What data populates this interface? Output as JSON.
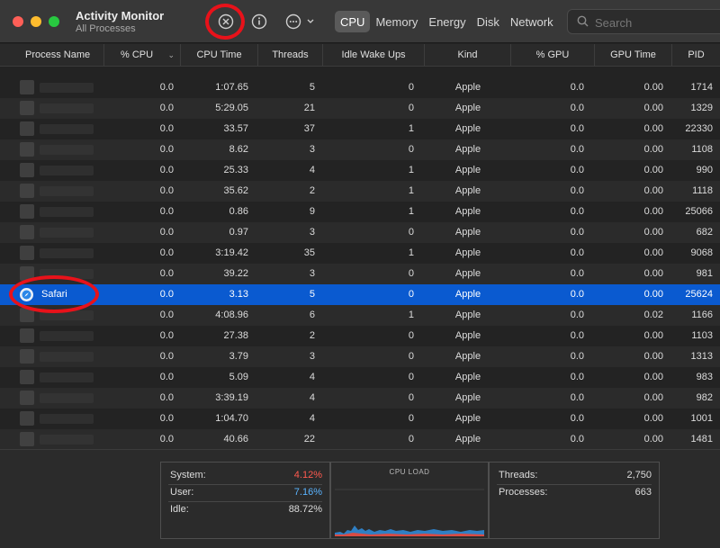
{
  "window": {
    "title": "Activity Monitor",
    "subtitle": "All Processes"
  },
  "toolbar": {
    "stop_icon": "stop-process-icon",
    "info_icon": "info-icon",
    "more_icon": "ellipsis-icon"
  },
  "tabs": [
    {
      "label": "CPU",
      "active": true
    },
    {
      "label": "Memory",
      "active": false
    },
    {
      "label": "Energy",
      "active": false
    },
    {
      "label": "Disk",
      "active": false
    },
    {
      "label": "Network",
      "active": false
    }
  ],
  "search": {
    "placeholder": "Search"
  },
  "columns": {
    "name": "Process Name",
    "cpu": "% CPU",
    "cpu_time": "CPU Time",
    "threads": "Threads",
    "idle": "Idle Wake Ups",
    "kind": "Kind",
    "gpu": "% GPU",
    "gpu_time": "GPU Time",
    "pid": "PID"
  },
  "rows": [
    {
      "name": "",
      "cpu": "0.0",
      "cpu_time": "1:07.65",
      "threads": "5",
      "idle": "0",
      "kind": "Apple",
      "gpu": "0.0",
      "gpu_time": "0.00",
      "pid": "1714"
    },
    {
      "name": "",
      "cpu": "0.0",
      "cpu_time": "5:29.05",
      "threads": "21",
      "idle": "0",
      "kind": "Apple",
      "gpu": "0.0",
      "gpu_time": "0.00",
      "pid": "1329"
    },
    {
      "name": "",
      "cpu": "0.0",
      "cpu_time": "33.57",
      "threads": "37",
      "idle": "1",
      "kind": "Apple",
      "gpu": "0.0",
      "gpu_time": "0.00",
      "pid": "22330"
    },
    {
      "name": "",
      "cpu": "0.0",
      "cpu_time": "8.62",
      "threads": "3",
      "idle": "0",
      "kind": "Apple",
      "gpu": "0.0",
      "gpu_time": "0.00",
      "pid": "1108"
    },
    {
      "name": "",
      "cpu": "0.0",
      "cpu_time": "25.33",
      "threads": "4",
      "idle": "1",
      "kind": "Apple",
      "gpu": "0.0",
      "gpu_time": "0.00",
      "pid": "990"
    },
    {
      "name": "",
      "cpu": "0.0",
      "cpu_time": "35.62",
      "threads": "2",
      "idle": "1",
      "kind": "Apple",
      "gpu": "0.0",
      "gpu_time": "0.00",
      "pid": "1118"
    },
    {
      "name": "",
      "cpu": "0.0",
      "cpu_time": "0.86",
      "threads": "9",
      "idle": "1",
      "kind": "Apple",
      "gpu": "0.0",
      "gpu_time": "0.00",
      "pid": "25066"
    },
    {
      "name": "",
      "cpu": "0.0",
      "cpu_time": "0.97",
      "threads": "3",
      "idle": "0",
      "kind": "Apple",
      "gpu": "0.0",
      "gpu_time": "0.00",
      "pid": "682"
    },
    {
      "name": "",
      "cpu": "0.0",
      "cpu_time": "3:19.42",
      "threads": "35",
      "idle": "1",
      "kind": "Apple",
      "gpu": "0.0",
      "gpu_time": "0.00",
      "pid": "9068"
    },
    {
      "name": "",
      "cpu": "0.0",
      "cpu_time": "39.22",
      "threads": "3",
      "idle": "0",
      "kind": "Apple",
      "gpu": "0.0",
      "gpu_time": "0.00",
      "pid": "981"
    },
    {
      "name": "Safari",
      "cpu": "0.0",
      "cpu_time": "3.13",
      "threads": "5",
      "idle": "0",
      "kind": "Apple",
      "gpu": "0.0",
      "gpu_time": "0.00",
      "pid": "25624",
      "selected": true
    },
    {
      "name": "",
      "cpu": "0.0",
      "cpu_time": "4:08.96",
      "threads": "6",
      "idle": "1",
      "kind": "Apple",
      "gpu": "0.0",
      "gpu_time": "0.02",
      "pid": "1166"
    },
    {
      "name": "",
      "cpu": "0.0",
      "cpu_time": "27.38",
      "threads": "2",
      "idle": "0",
      "kind": "Apple",
      "gpu": "0.0",
      "gpu_time": "0.00",
      "pid": "1103"
    },
    {
      "name": "",
      "cpu": "0.0",
      "cpu_time": "3.79",
      "threads": "3",
      "idle": "0",
      "kind": "Apple",
      "gpu": "0.0",
      "gpu_time": "0.00",
      "pid": "1313"
    },
    {
      "name": "",
      "cpu": "0.0",
      "cpu_time": "5.09",
      "threads": "4",
      "idle": "0",
      "kind": "Apple",
      "gpu": "0.0",
      "gpu_time": "0.00",
      "pid": "983"
    },
    {
      "name": "",
      "cpu": "0.0",
      "cpu_time": "3:39.19",
      "threads": "4",
      "idle": "0",
      "kind": "Apple",
      "gpu": "0.0",
      "gpu_time": "0.00",
      "pid": "982"
    },
    {
      "name": "",
      "cpu": "0.0",
      "cpu_time": "1:04.70",
      "threads": "4",
      "idle": "0",
      "kind": "Apple",
      "gpu": "0.0",
      "gpu_time": "0.00",
      "pid": "1001"
    },
    {
      "name": "",
      "cpu": "0.0",
      "cpu_time": "40.66",
      "threads": "22",
      "idle": "0",
      "kind": "Apple",
      "gpu": "0.0",
      "gpu_time": "0.00",
      "pid": "1481"
    }
  ],
  "summary": {
    "system_label": "System:",
    "system_value": "4.12%",
    "user_label": "User:",
    "user_value": "7.16%",
    "idle_label": "Idle:",
    "idle_value": "88.72%",
    "cpu_load_title": "CPU LOAD",
    "threads_label": "Threads:",
    "threads_value": "2,750",
    "processes_label": "Processes:",
    "processes_value": "663"
  },
  "colors": {
    "system": "#ff5a4f",
    "user": "#5ab4ff",
    "selection": "#0a5ad0",
    "annotation": "#e8121a"
  }
}
